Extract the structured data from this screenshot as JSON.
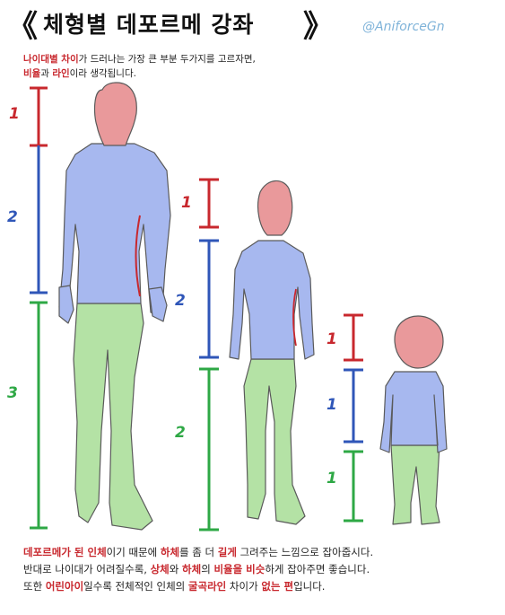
{
  "title": {
    "open_bracket": "《",
    "text": "체형별 데포르메 강좌",
    "close_bracket": "》"
  },
  "handle": "@AniforceGn",
  "intro": {
    "line1": [
      {
        "text": "나이대별 차이",
        "emph": true
      },
      {
        "text": "가 드러나는 가장 큰 부분 두가지를 고르자면,",
        "emph": false
      }
    ],
    "line2": [
      {
        "text": "비율",
        "emph": true
      },
      {
        "text": "과 ",
        "emph": false
      },
      {
        "text": "라인",
        "emph": true
      },
      {
        "text": "이라 생각됩니다.",
        "emph": false
      }
    ]
  },
  "figures": [
    {
      "name": "adult",
      "proportions": [
        "1",
        "2",
        "3"
      ]
    },
    {
      "name": "teen",
      "proportions": [
        "1",
        "2",
        "2"
      ]
    },
    {
      "name": "child",
      "proportions": [
        "1",
        "1",
        "1"
      ]
    }
  ],
  "colors": {
    "head": "#e9999b",
    "torso": "#a7b8ef",
    "legs": "#b4e2a5",
    "scale_red": "#c8282e",
    "scale_blue": "#2f56b8",
    "scale_green": "#2ea845"
  },
  "footer": {
    "line1": [
      {
        "text": "데포르메가 된 인체",
        "emph": true
      },
      {
        "text": "이기 때문에 ",
        "emph": false
      },
      {
        "text": "하체",
        "emph": true
      },
      {
        "text": "를 좀 더 ",
        "emph": false
      },
      {
        "text": "길게",
        "emph": true
      },
      {
        "text": " 그려주는 느낌으로 잡아줍시다.",
        "emph": false
      }
    ],
    "line2": [
      {
        "text": "반대로 나이대가 어려질수록, ",
        "emph": false
      },
      {
        "text": "상체",
        "emph": true
      },
      {
        "text": "와 ",
        "emph": false
      },
      {
        "text": "하체",
        "emph": true
      },
      {
        "text": "의 ",
        "emph": false
      },
      {
        "text": "비율을 비슷",
        "emph": true
      },
      {
        "text": "하게 잡아주면 좋습니다.",
        "emph": false
      }
    ],
    "line3": [
      {
        "text": "또한 ",
        "emph": false
      },
      {
        "text": "어린아이",
        "emph": true
      },
      {
        "text": "일수록 전체적인 인체의 ",
        "emph": false
      },
      {
        "text": "굴곡라인",
        "emph": true
      },
      {
        "text": " 차이가 ",
        "emph": false
      },
      {
        "text": "없는 편",
        "emph": true
      },
      {
        "text": "입니다.",
        "emph": false
      }
    ]
  }
}
